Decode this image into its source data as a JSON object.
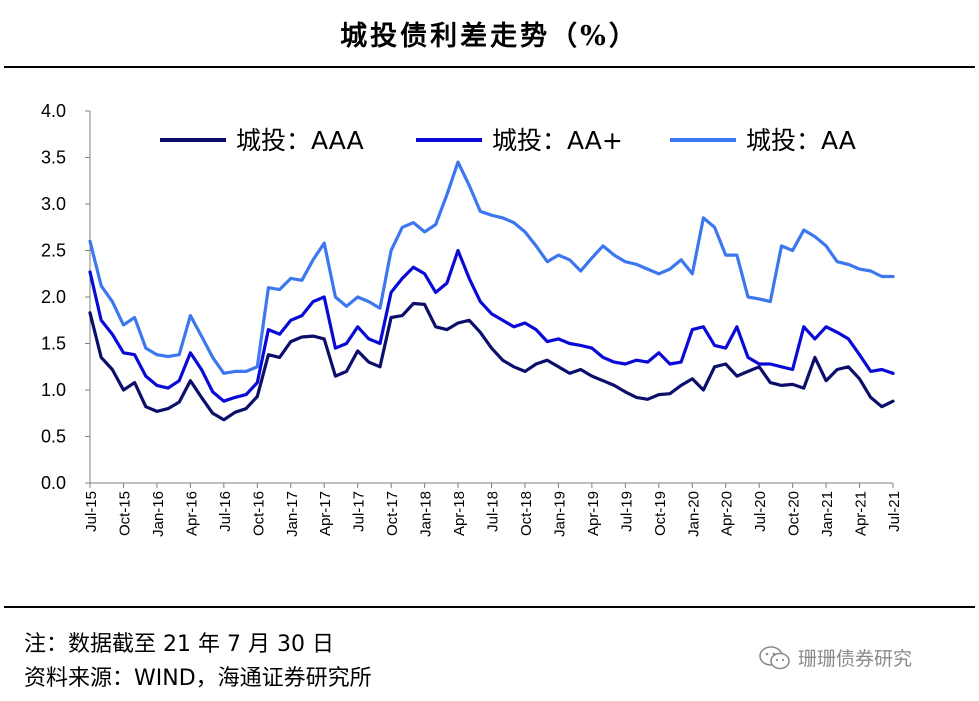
{
  "chart_data": {
    "type": "line",
    "title": "城投债利差走势（%）",
    "xlabel": "",
    "ylabel": "",
    "ylim": [
      0,
      4
    ],
    "yticks": [
      "0.0",
      "0.5",
      "1.0",
      "1.5",
      "2.0",
      "2.5",
      "3.0",
      "3.5",
      "4.0"
    ],
    "xticks": [
      "Jul-15",
      "Oct-15",
      "Jan-16",
      "Apr-16",
      "Jul-16",
      "Oct-16",
      "Jan-17",
      "Apr-17",
      "Jul-17",
      "Oct-17",
      "Jan-18",
      "Apr-18",
      "Jul-18",
      "Oct-18",
      "Jan-19",
      "Apr-19",
      "Jul-19",
      "Oct-19",
      "Jan-20",
      "Apr-20",
      "Jul-20",
      "Oct-20",
      "Jan-21",
      "Apr-21",
      "Jul-21"
    ],
    "x": [
      "Jul-15",
      "Aug-15",
      "Sep-15",
      "Oct-15",
      "Nov-15",
      "Dec-15",
      "Jan-16",
      "Feb-16",
      "Mar-16",
      "Apr-16",
      "May-16",
      "Jun-16",
      "Jul-16",
      "Aug-16",
      "Sep-16",
      "Oct-16",
      "Nov-16",
      "Dec-16",
      "Jan-17",
      "Feb-17",
      "Mar-17",
      "Apr-17",
      "May-17",
      "Jun-17",
      "Jul-17",
      "Aug-17",
      "Sep-17",
      "Oct-17",
      "Nov-17",
      "Dec-17",
      "Jan-18",
      "Feb-18",
      "Mar-18",
      "Apr-18",
      "May-18",
      "Jun-18",
      "Jul-18",
      "Aug-18",
      "Sep-18",
      "Oct-18",
      "Nov-18",
      "Dec-18",
      "Jan-19",
      "Feb-19",
      "Mar-19",
      "Apr-19",
      "May-19",
      "Jun-19",
      "Jul-19",
      "Aug-19",
      "Sep-19",
      "Oct-19",
      "Nov-19",
      "Dec-19",
      "Jan-20",
      "Feb-20",
      "Mar-20",
      "Apr-20",
      "May-20",
      "Jun-20",
      "Jul-20",
      "Aug-20",
      "Sep-20",
      "Oct-20",
      "Nov-20",
      "Dec-20",
      "Jan-21",
      "Feb-21",
      "Mar-21",
      "Apr-21",
      "May-21",
      "Jun-21",
      "Jul-21"
    ],
    "series": [
      {
        "name": "城投：AAA",
        "color": "#0b0f6b",
        "values": [
          1.83,
          1.35,
          1.22,
          1.0,
          1.08,
          0.82,
          0.77,
          0.8,
          0.87,
          1.1,
          0.92,
          0.75,
          0.68,
          0.76,
          0.8,
          0.93,
          1.38,
          1.35,
          1.52,
          1.57,
          1.58,
          1.55,
          1.15,
          1.2,
          1.42,
          1.3,
          1.25,
          1.78,
          1.8,
          1.93,
          1.92,
          1.68,
          1.65,
          1.72,
          1.75,
          1.62,
          1.45,
          1.32,
          1.25,
          1.2,
          1.28,
          1.32,
          1.25,
          1.18,
          1.22,
          1.15,
          1.1,
          1.05,
          0.98,
          0.92,
          0.9,
          0.95,
          0.96,
          1.05,
          1.12,
          1.0,
          1.25,
          1.28,
          1.15,
          1.2,
          1.25,
          1.08,
          1.05,
          1.06,
          1.02,
          1.35,
          1.1,
          1.22,
          1.25,
          1.12,
          0.92,
          0.82,
          0.88
        ]
      },
      {
        "name": "城投：AA+",
        "color": "#0a0ad8",
        "values": [
          2.27,
          1.75,
          1.6,
          1.4,
          1.38,
          1.15,
          1.05,
          1.02,
          1.1,
          1.4,
          1.22,
          0.98,
          0.88,
          0.92,
          0.95,
          1.08,
          1.65,
          1.6,
          1.75,
          1.8,
          1.95,
          2.0,
          1.45,
          1.5,
          1.68,
          1.55,
          1.5,
          2.05,
          2.2,
          2.32,
          2.25,
          2.05,
          2.15,
          2.5,
          2.2,
          1.95,
          1.82,
          1.75,
          1.68,
          1.72,
          1.65,
          1.52,
          1.55,
          1.5,
          1.48,
          1.45,
          1.35,
          1.3,
          1.28,
          1.32,
          1.3,
          1.4,
          1.28,
          1.3,
          1.65,
          1.68,
          1.48,
          1.45,
          1.68,
          1.35,
          1.28,
          1.28,
          1.25,
          1.22,
          1.68,
          1.55,
          1.68,
          1.62,
          1.55,
          1.38,
          1.2,
          1.22,
          1.18
        ]
      },
      {
        "name": "城投：AA",
        "color": "#3d77f0",
        "values": [
          2.6,
          2.12,
          1.95,
          1.7,
          1.78,
          1.45,
          1.38,
          1.36,
          1.38,
          1.8,
          1.58,
          1.35,
          1.18,
          1.2,
          1.2,
          1.25,
          2.1,
          2.08,
          2.2,
          2.18,
          2.4,
          2.58,
          2.0,
          1.9,
          2.0,
          1.95,
          1.88,
          2.5,
          2.75,
          2.8,
          2.7,
          2.78,
          3.1,
          3.45,
          3.2,
          2.92,
          2.88,
          2.85,
          2.8,
          2.7,
          2.55,
          2.38,
          2.45,
          2.4,
          2.28,
          2.42,
          2.55,
          2.45,
          2.38,
          2.35,
          2.3,
          2.25,
          2.3,
          2.4,
          2.25,
          2.85,
          2.75,
          2.45,
          2.45,
          2.0,
          1.98,
          1.95,
          2.55,
          2.5,
          2.72,
          2.65,
          2.55,
          2.38,
          2.35,
          2.3,
          2.28,
          2.22,
          2.22
        ]
      }
    ],
    "legend": "top"
  },
  "notes": {
    "line1": "注：数据截至 21 年 7 月 30 日",
    "line2": "资料来源：WIND，海通证券研究所"
  },
  "watermark": {
    "text": "珊珊债券研究",
    "icon": "wechat-icon"
  }
}
